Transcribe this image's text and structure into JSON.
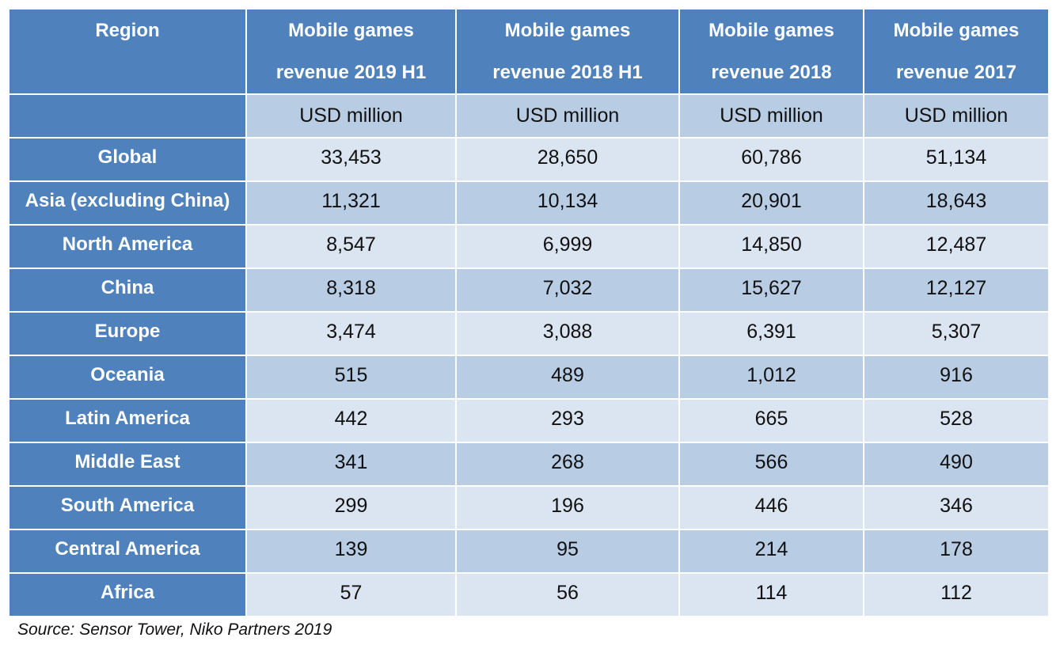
{
  "table": {
    "headers": [
      "Region",
      "Mobile games revenue 2019 H1",
      "Mobile games revenue 2018 H1",
      "Mobile games revenue 2018",
      "Mobile games revenue 2017"
    ],
    "header_lines": [
      [
        "Region",
        ""
      ],
      [
        "Mobile games",
        "revenue 2019 H1"
      ],
      [
        "Mobile games",
        "revenue 2018 H1"
      ],
      [
        "Mobile games",
        "revenue 2018"
      ],
      [
        "Mobile games",
        "revenue 2017"
      ]
    ],
    "units": [
      "",
      "USD million",
      "USD million",
      "USD million",
      "USD million"
    ],
    "rows": [
      [
        "Global",
        "33,453",
        "28,650",
        "60,786",
        "51,134"
      ],
      [
        "Asia (excluding China)",
        "11,321",
        "10,134",
        "20,901",
        "18,643"
      ],
      [
        "North America",
        "8,547",
        "6,999",
        "14,850",
        "12,487"
      ],
      [
        "China",
        "8,318",
        "7,032",
        "15,627",
        "12,127"
      ],
      [
        "Europe",
        "3,474",
        "3,088",
        "6,391",
        "5,307"
      ],
      [
        "Oceania",
        "515",
        "489",
        "1,012",
        "916"
      ],
      [
        "Latin America",
        "442",
        "293",
        "665",
        "528"
      ],
      [
        "Middle East",
        "341",
        "268",
        "566",
        "490"
      ],
      [
        "South America",
        "299",
        "196",
        "446",
        "346"
      ],
      [
        "Central America",
        "139",
        "95",
        "214",
        "178"
      ],
      [
        "Africa",
        "57",
        "56",
        "114",
        "112"
      ]
    ]
  },
  "source": "Source: Sensor Tower, Niko Partners 2019",
  "colors": {
    "header_blue": "#4f81bd",
    "row_light": "#dbe5f1",
    "row_mid": "#b8cce4"
  }
}
